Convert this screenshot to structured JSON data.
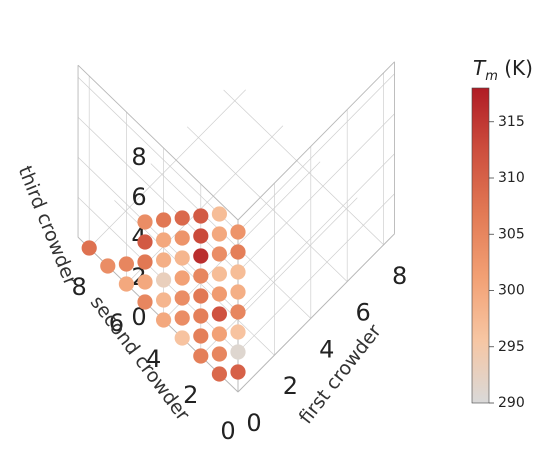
{
  "chart_data": {
    "type": "scatter3d",
    "axes": {
      "x": {
        "label": "first crowder",
        "ticks": [
          0,
          2,
          4,
          6,
          8
        ]
      },
      "y": {
        "label": "second crowder",
        "ticks": [
          0,
          2,
          4,
          6,
          8
        ]
      },
      "z": {
        "label": "third crowder",
        "ticks": [
          0,
          2,
          4,
          6,
          8
        ]
      }
    },
    "colorbar": {
      "label_main": "T",
      "label_sub": "m",
      "label_unit": " (K)",
      "ticks": [
        290,
        295,
        300,
        305,
        310,
        315
      ],
      "range": [
        290,
        318
      ],
      "colormap": [
        "#d9d9d9",
        "#f7c6a3",
        "#f2a074",
        "#e27a55",
        "#cd4f3e",
        "#b01c25"
      ]
    },
    "points": [
      {
        "x": 0,
        "y": 1,
        "z": 0,
        "t": 309
      },
      {
        "x": 0,
        "y": 2,
        "z": 0,
        "t": 306
      },
      {
        "x": 0,
        "y": 3,
        "z": 0,
        "t": 296
      },
      {
        "x": 0,
        "y": 4,
        "z": 0,
        "t": 300
      },
      {
        "x": 0,
        "y": 5,
        "z": 0,
        "t": 305
      },
      {
        "x": 0,
        "y": 6,
        "z": 0,
        "t": 300
      },
      {
        "x": 0,
        "y": 7,
        "z": 0,
        "t": 304
      },
      {
        "x": 0,
        "y": 8,
        "z": 0,
        "t": 308
      },
      {
        "x": 0,
        "y": 0,
        "z": 1,
        "t": 310
      },
      {
        "x": 0,
        "y": 0,
        "z": 2,
        "t": 291
      },
      {
        "x": 0,
        "y": 0,
        "z": 3,
        "t": 296
      },
      {
        "x": 0,
        "y": 0,
        "z": 4,
        "t": 305
      },
      {
        "x": 0,
        "y": 0,
        "z": 5,
        "t": 299
      },
      {
        "x": 0,
        "y": 0,
        "z": 6,
        "t": 297
      },
      {
        "x": 0,
        "y": 0,
        "z": 7,
        "t": 306
      },
      {
        "x": 0,
        "y": 0,
        "z": 8,
        "t": 303
      },
      {
        "x": 0,
        "y": 1,
        "z": 1,
        "t": 305
      },
      {
        "x": 0,
        "y": 2,
        "z": 1,
        "t": 306
      },
      {
        "x": 0,
        "y": 3,
        "z": 1,
        "t": 304
      },
      {
        "x": 0,
        "y": 4,
        "z": 1,
        "t": 298
      },
      {
        "x": 0,
        "y": 5,
        "z": 1,
        "t": 300
      },
      {
        "x": 0,
        "y": 6,
        "z": 1,
        "t": 305
      },
      {
        "x": 0,
        "y": 1,
        "z": 2,
        "t": 301
      },
      {
        "x": 0,
        "y": 2,
        "z": 2,
        "t": 306
      },
      {
        "x": 0,
        "y": 3,
        "z": 2,
        "t": 304
      },
      {
        "x": 0,
        "y": 4,
        "z": 2,
        "t": 293
      },
      {
        "x": 0,
        "y": 5,
        "z": 2,
        "t": 307
      },
      {
        "x": 0,
        "y": 1,
        "z": 3,
        "t": 312
      },
      {
        "x": 0,
        "y": 2,
        "z": 3,
        "t": 307
      },
      {
        "x": 0,
        "y": 3,
        "z": 3,
        "t": 301
      },
      {
        "x": 0,
        "y": 4,
        "z": 3,
        "t": 299
      },
      {
        "x": 0,
        "y": 5,
        "z": 3,
        "t": 311
      },
      {
        "x": 0,
        "y": 1,
        "z": 4,
        "t": 302
      },
      {
        "x": 0,
        "y": 2,
        "z": 4,
        "t": 305
      },
      {
        "x": 0,
        "y": 3,
        "z": 4,
        "t": 298
      },
      {
        "x": 0,
        "y": 4,
        "z": 4,
        "t": 300
      },
      {
        "x": 0,
        "y": 5,
        "z": 4,
        "t": 304
      },
      {
        "x": 0,
        "y": 1,
        "z": 5,
        "t": 297
      },
      {
        "x": 0,
        "y": 2,
        "z": 5,
        "t": 316
      },
      {
        "x": 0,
        "y": 3,
        "z": 5,
        "t": 303
      },
      {
        "x": 0,
        "y": 4,
        "z": 5,
        "t": 307
      },
      {
        "x": 0,
        "y": 1,
        "z": 6,
        "t": 304
      },
      {
        "x": 0,
        "y": 2,
        "z": 6,
        "t": 313
      },
      {
        "x": 0,
        "y": 3,
        "z": 6,
        "t": 309
      },
      {
        "x": 0,
        "y": 1,
        "z": 7,
        "t": 300
      },
      {
        "x": 0,
        "y": 2,
        "z": 7,
        "t": 311
      },
      {
        "x": 0,
        "y": 1,
        "z": 8,
        "t": 297
      }
    ]
  }
}
